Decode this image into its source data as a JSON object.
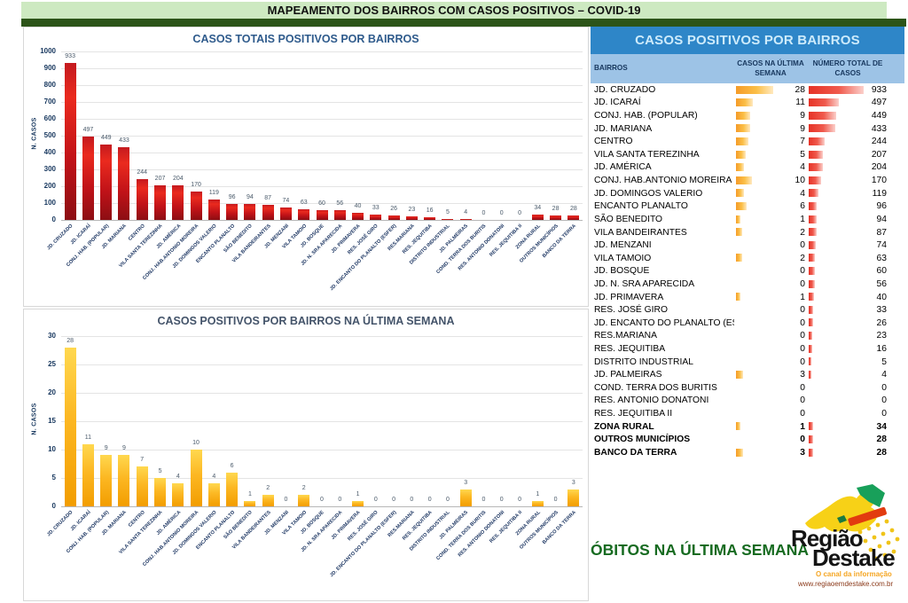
{
  "header": {
    "title": "MAPEAMENTO DOS BAIRROS COM CASOS POSITIVOS – COVID-19"
  },
  "colors": {
    "banner_bg": "#cde9c1",
    "banner_strip": "#2c5418",
    "total_bar_red": "#c01218",
    "week_bar_yellow": "#f5a500",
    "table_title_bg": "#2e86c8",
    "table_header_bg": "#9dc3e6",
    "table_header_text": "#17375e",
    "obitos_green": "#176b21",
    "logo_yellow": "#f7d117",
    "logo_green": "#18a05a",
    "logo_red": "#e23b0f"
  },
  "chart_data": [
    {
      "type": "bar",
      "title": "CASOS TOTAIS POSITIVOS POR BAIRROS",
      "xlabel": "",
      "ylabel": "N. CASOS",
      "ylim": [
        0,
        1000
      ],
      "ytick_step": 100,
      "grid": true,
      "legend": "none",
      "bar_color": "red-gradient",
      "categories": [
        "JD. CRUZADO",
        "JD. ICARAÍ",
        "CONJ. HAB. (POPULAR)",
        "JD. MARIANA",
        "CENTRO",
        "VILA SANTA TEREZINHA",
        "JD. AMÉRICA",
        "CONJ. HAB.ANTONIO MOREIRA",
        "JD. DOMINGOS VALERIO",
        "ENCANTO PLANALTO",
        "SÃO BENEDITO",
        "VILA BANDEIRANTES",
        "JD. MENZANI",
        "VILA TAMOIO",
        "JD. BOSQUE",
        "JD. N. SRA APARECIDA",
        "JD. PRIMAVERA",
        "RES. JOSÉ GIRO",
        "JD. ENCANTO DO PLANALTO (ESFER)",
        "RES.MARIANA",
        "RES. JEQUITIBA",
        "DISTRITO INDUSTRIAL",
        "JD. PALMEIRAS",
        "COND. TERRA DOS BURITIS",
        "RES. ANTONIO DONATONI",
        "RES. JEQUITIBA II",
        "ZONA RURAL",
        "OUTROS MUNICÍPIOS",
        "BANCO DA TERRA"
      ],
      "values": [
        933,
        497,
        449,
        433,
        244,
        207,
        204,
        170,
        119,
        96,
        94,
        87,
        74,
        63,
        60,
        56,
        40,
        33,
        26,
        23,
        16,
        5,
        4,
        0,
        0,
        0,
        34,
        28,
        28
      ]
    },
    {
      "type": "bar",
      "title": "CASOS POSITIVOS POR BAIRROS NA ÚLTIMA SEMANA",
      "xlabel": "",
      "ylabel": "N. CASOS",
      "ylim": [
        0,
        30
      ],
      "ytick_step": 5,
      "grid": true,
      "legend": "none",
      "bar_color": "yellow-gradient",
      "categories": [
        "JD. CRUZADO",
        "JD. ICARAÍ",
        "CONJ. HAB. (POPULAR)",
        "JD. MARIANA",
        "CENTRO",
        "VILA SANTA TEREZINHA",
        "JD. AMÉRICA",
        "CONJ. HAB.ANTONIO MOREIRA",
        "JD. DOMINGOS VALERIO",
        "ENCANTO PLANALTO",
        "SÃO BENEDITO",
        "VILA BANDEIRANTES",
        "JD. MENZANI",
        "VILA TAMOIO",
        "JD. BOSQUE",
        "JD. N. SRA APARECIDA",
        "JD. PRIMAVERA",
        "RES. JOSÉ GIRO",
        "JD. ENCANTO DO PLANALTO (ESFER)",
        "RES.MARIANA",
        "RES. JEQUITIBA",
        "DISTRITO INDUSTRIAL",
        "JD. PALMEIRAS",
        "COND. TERRA DOS BURITIS",
        "RES. ANTONIO DONATONI",
        "RES. JEQUITIBA II",
        "ZONA RURAL",
        "OUTROS MUNICÍPIOS",
        "BANCO DA TERRA"
      ],
      "values": [
        28,
        11,
        9,
        9,
        7,
        5,
        4,
        10,
        4,
        6,
        1,
        2,
        0,
        2,
        0,
        0,
        1,
        0,
        0,
        0,
        0,
        0,
        3,
        0,
        0,
        0,
        1,
        0,
        3
      ]
    }
  ],
  "table": {
    "title": "CASOS POSITIVOS POR BAIRROS",
    "columns": [
      "BAIRROS",
      "CASOS NA ÚLTIMA SEMANA",
      "NÚMERO TOTAL DE CASOS"
    ],
    "week_max": 28,
    "total_max": 933,
    "rows": [
      {
        "name": "JD. CRUZADO",
        "week": 28,
        "total": 933,
        "bold": false
      },
      {
        "name": "JD. ICARAÍ",
        "week": 11,
        "total": 497,
        "bold": false
      },
      {
        "name": "CONJ. HAB. (POPULAR)",
        "week": 9,
        "total": 449,
        "bold": false
      },
      {
        "name": "JD. MARIANA",
        "week": 9,
        "total": 433,
        "bold": false
      },
      {
        "name": "CENTRO",
        "week": 7,
        "total": 244,
        "bold": false
      },
      {
        "name": "VILA SANTA TEREZINHA",
        "week": 5,
        "total": 207,
        "bold": false
      },
      {
        "name": "JD. AMÉRICA",
        "week": 4,
        "total": 204,
        "bold": false
      },
      {
        "name": "CONJ. HAB.ANTONIO MOREIRA",
        "week": 10,
        "total": 170,
        "bold": false
      },
      {
        "name": "JD. DOMINGOS VALERIO",
        "week": 4,
        "total": 119,
        "bold": false
      },
      {
        "name": "ENCANTO PLANALTO",
        "week": 6,
        "total": 96,
        "bold": false
      },
      {
        "name": "SÃO BENEDITO",
        "week": 1,
        "total": 94,
        "bold": false
      },
      {
        "name": "VILA BANDEIRANTES",
        "week": 2,
        "total": 87,
        "bold": false
      },
      {
        "name": "JD. MENZANI",
        "week": 0,
        "total": 74,
        "bold": false
      },
      {
        "name": "VILA TAMOIO",
        "week": 2,
        "total": 63,
        "bold": false
      },
      {
        "name": "JD. BOSQUE",
        "week": 0,
        "total": 60,
        "bold": false
      },
      {
        "name": "JD. N. SRA APARECIDA",
        "week": 0,
        "total": 56,
        "bold": false
      },
      {
        "name": "JD. PRIMAVERA",
        "week": 1,
        "total": 40,
        "bold": false
      },
      {
        "name": "RES. JOSÉ GIRO",
        "week": 0,
        "total": 33,
        "bold": false
      },
      {
        "name": "JD. ENCANTO DO PLANALTO (ESFER",
        "week": 0,
        "total": 26,
        "bold": false
      },
      {
        "name": "RES.MARIANA",
        "week": 0,
        "total": 23,
        "bold": false
      },
      {
        "name": "RES. JEQUITIBA",
        "week": 0,
        "total": 16,
        "bold": false
      },
      {
        "name": "DISTRITO INDUSTRIAL",
        "week": 0,
        "total": 5,
        "bold": false
      },
      {
        "name": "JD. PALMEIRAS",
        "week": 3,
        "total": 4,
        "bold": false
      },
      {
        "name": "COND. TERRA DOS BURITIS",
        "week": 0,
        "total": 0,
        "bold": false
      },
      {
        "name": "RES. ANTONIO DONATONI",
        "week": 0,
        "total": 0,
        "bold": false
      },
      {
        "name": "RES. JEQUITIBA II",
        "week": 0,
        "total": 0,
        "bold": false
      },
      {
        "name": "ZONA RURAL",
        "week": 1,
        "total": 34,
        "bold": true
      },
      {
        "name": "OUTROS MUNICÍPIOS",
        "week": 0,
        "total": 28,
        "bold": true
      },
      {
        "name": "BANCO DA TERRA",
        "week": 3,
        "total": 28,
        "bold": true
      }
    ]
  },
  "footer": {
    "obitos_label": "ÓBITOS NA ÚLTIMA SEMANA"
  },
  "logo": {
    "line1": "Região",
    "line2": "Destake",
    "tagline": "O canal da informação",
    "url": "www.regiaoemdestake.com.br"
  }
}
